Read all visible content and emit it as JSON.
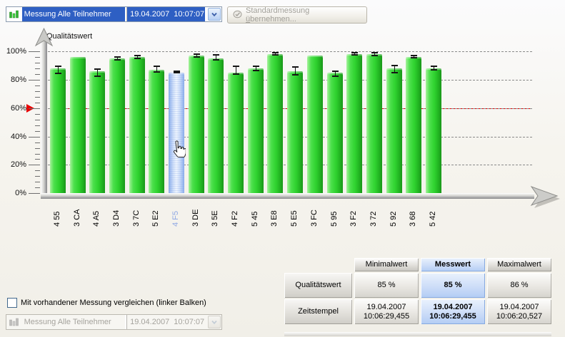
{
  "toolbar": {
    "measurement_select": {
      "label": "Messung Alle Teilnehmer",
      "datetime": "19.04.2007  10:07:07",
      "icon": "bar-chart-icon",
      "enabled": true,
      "selected": true
    },
    "apply_standard_button": {
      "label": "Standardmessung übernehmen...",
      "accel_char": "ü",
      "icon": "stamp-icon",
      "enabled": false
    }
  },
  "chart_data": {
    "type": "bar",
    "title": "Qualitätswert",
    "xlabel": "",
    "ylabel": "Qualitätswert",
    "ylim": [
      0,
      100
    ],
    "y_ticks": [
      0,
      20,
      40,
      60,
      80,
      100
    ],
    "y_tick_suffix": "%",
    "grid": "dashed-horizontal",
    "threshold_line": {
      "value": 60,
      "color": "#e80000"
    },
    "categories": [
      "4 55",
      "3 CA",
      "4 A5",
      "3 D4",
      "3 7C",
      "5 E2",
      "4 F5",
      "3 DE",
      "3 5E",
      "4 F2",
      "5 45",
      "3 E8",
      "5 E5",
      "3 FC",
      "5 95",
      "3 F2",
      "3 72",
      "5 92",
      "3 68",
      "5 42"
    ],
    "values": [
      88,
      96,
      86,
      95,
      96,
      87,
      85,
      97,
      95,
      85,
      88,
      98,
      86,
      97,
      85,
      98,
      98,
      88,
      96,
      88
    ],
    "error_low": [
      84.5,
      null,
      82.5,
      94,
      95,
      85.5,
      85,
      96,
      94,
      84,
      86.5,
      97.5,
      83.5,
      null,
      82.5,
      97.5,
      97,
      85,
      95.5,
      87
    ],
    "error_high": [
      89.5,
      null,
      87.5,
      96,
      97,
      89.5,
      86,
      98,
      97.5,
      89.5,
      89.5,
      99,
      89,
      null,
      86,
      99,
      99,
      90,
      97,
      89.5
    ],
    "selected_index": 6,
    "selected_label": "4 F5",
    "bar_color": "#2fd32f",
    "selected_bar_color": "#a9c5f0",
    "legend_position": "none"
  },
  "compare_checkbox": {
    "label": "Mit vorhandener Messung vergleichen (linker Balken)",
    "checked": false
  },
  "compare_select": {
    "label": "Messung Alle Teilnehmer",
    "datetime": "19.04.2007  10:07:07",
    "icon": "bar-chart-icon",
    "enabled": false
  },
  "result_table": {
    "column_headers": [
      "Minimalwert",
      "Messwert",
      "Maximalwert"
    ],
    "highlight_column": "Messwert",
    "rows": [
      {
        "label": "Qualitätswert",
        "cells": [
          [
            "85 %"
          ],
          [
            "85 %"
          ],
          [
            "86 %"
          ]
        ]
      },
      {
        "label": "Zeitstempel",
        "cells": [
          [
            "19.04.2007",
            "10:06:29,455"
          ],
          [
            "19.04.2007",
            "10:06:29,455"
          ],
          [
            "19.04.2007",
            "10:06:20,527"
          ]
        ]
      }
    ]
  },
  "cursor": {
    "type": "hand-pointer",
    "over": "4 F5"
  },
  "colors": {
    "selection_blue": "#2e5fc3",
    "bar_green": "#2fd32f",
    "selected_bar_blue": "#a9c5f0",
    "threshold_red": "#e80000",
    "messwert_highlight": "#b2ccf4"
  }
}
